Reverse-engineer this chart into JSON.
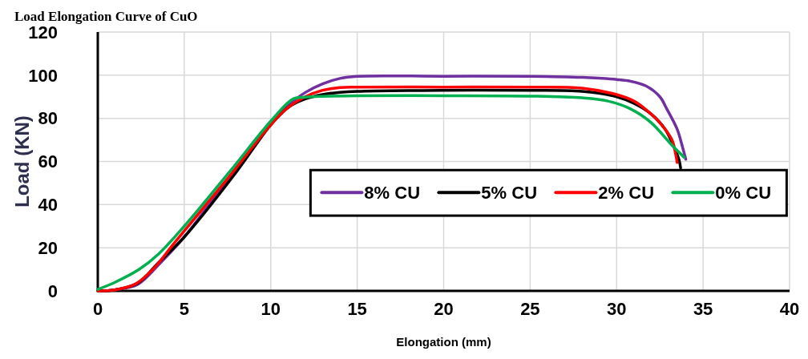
{
  "chart_data": {
    "type": "line",
    "title": "Load Elongation Curve of CuO",
    "xlabel": "Elongation (mm)",
    "ylabel": "Load (KN)",
    "xlim": [
      0,
      40
    ],
    "xticks": [
      0,
      5,
      10,
      15,
      20,
      25,
      30,
      35,
      40
    ],
    "ylim": [
      0,
      120
    ],
    "yticks": [
      0,
      20,
      40,
      60,
      80,
      100,
      120
    ],
    "grid": true,
    "legend": "right",
    "line_style": "solid",
    "marker": "none",
    "series": [
      {
        "name": "8% CU",
        "color": "#7030a0",
        "x": [
          0,
          1,
          2.3,
          3.5,
          5,
          8,
          10,
          11,
          12,
          13,
          14,
          15,
          20,
          25,
          28,
          30,
          30.8,
          31.7,
          32.5,
          32.9,
          33.5,
          33.8,
          34
        ],
        "values": [
          0,
          0.5,
          3,
          12,
          25,
          57,
          78,
          86,
          92,
          96,
          98.5,
          99.5,
          99.5,
          99.5,
          99,
          98,
          97.2,
          95,
          90,
          84.4,
          75,
          67,
          61
        ]
      },
      {
        "name": "5% CU",
        "color": "#000000",
        "x": [
          0,
          1,
          2.3,
          3.5,
          5,
          8,
          10,
          11,
          12,
          13,
          14,
          15,
          20,
          25,
          28,
          30,
          31,
          32,
          32.8,
          33.3,
          33.6,
          33.7
        ],
        "values": [
          0,
          0.5,
          3.5,
          13,
          25,
          55,
          77,
          85,
          89,
          91,
          92,
          92.5,
          93,
          93,
          92.5,
          90,
          87,
          82,
          75,
          67,
          61,
          57
        ]
      },
      {
        "name": "2% CU",
        "color": "#ff0000",
        "x": [
          0,
          1,
          2.2,
          3.3,
          4.4,
          7.6,
          10,
          11,
          12,
          13,
          14,
          15,
          20,
          25,
          28,
          30,
          31,
          31.7,
          32.5,
          33.2,
          33.4,
          33.5
        ],
        "values": [
          0,
          0.5,
          3.3,
          11,
          22,
          53,
          77,
          85,
          90,
          93,
          94.3,
          94.5,
          94.5,
          94.5,
          94,
          91,
          88,
          84,
          78,
          70,
          64,
          59.5
        ]
      },
      {
        "name": "0% CU",
        "color": "#00b050",
        "x": [
          0,
          1,
          2.4,
          3.5,
          5,
          7.6,
          10.1,
          11.3,
          12,
          13,
          15,
          20,
          25,
          28,
          29.5,
          30.8,
          32,
          33.2,
          33.9
        ],
        "values": [
          0.7,
          4,
          10,
          17,
          30,
          55,
          79.6,
          89,
          89.8,
          90.2,
          90.5,
          90.5,
          90.3,
          89.5,
          88,
          84.4,
          78,
          67.5,
          62
        ]
      }
    ]
  }
}
